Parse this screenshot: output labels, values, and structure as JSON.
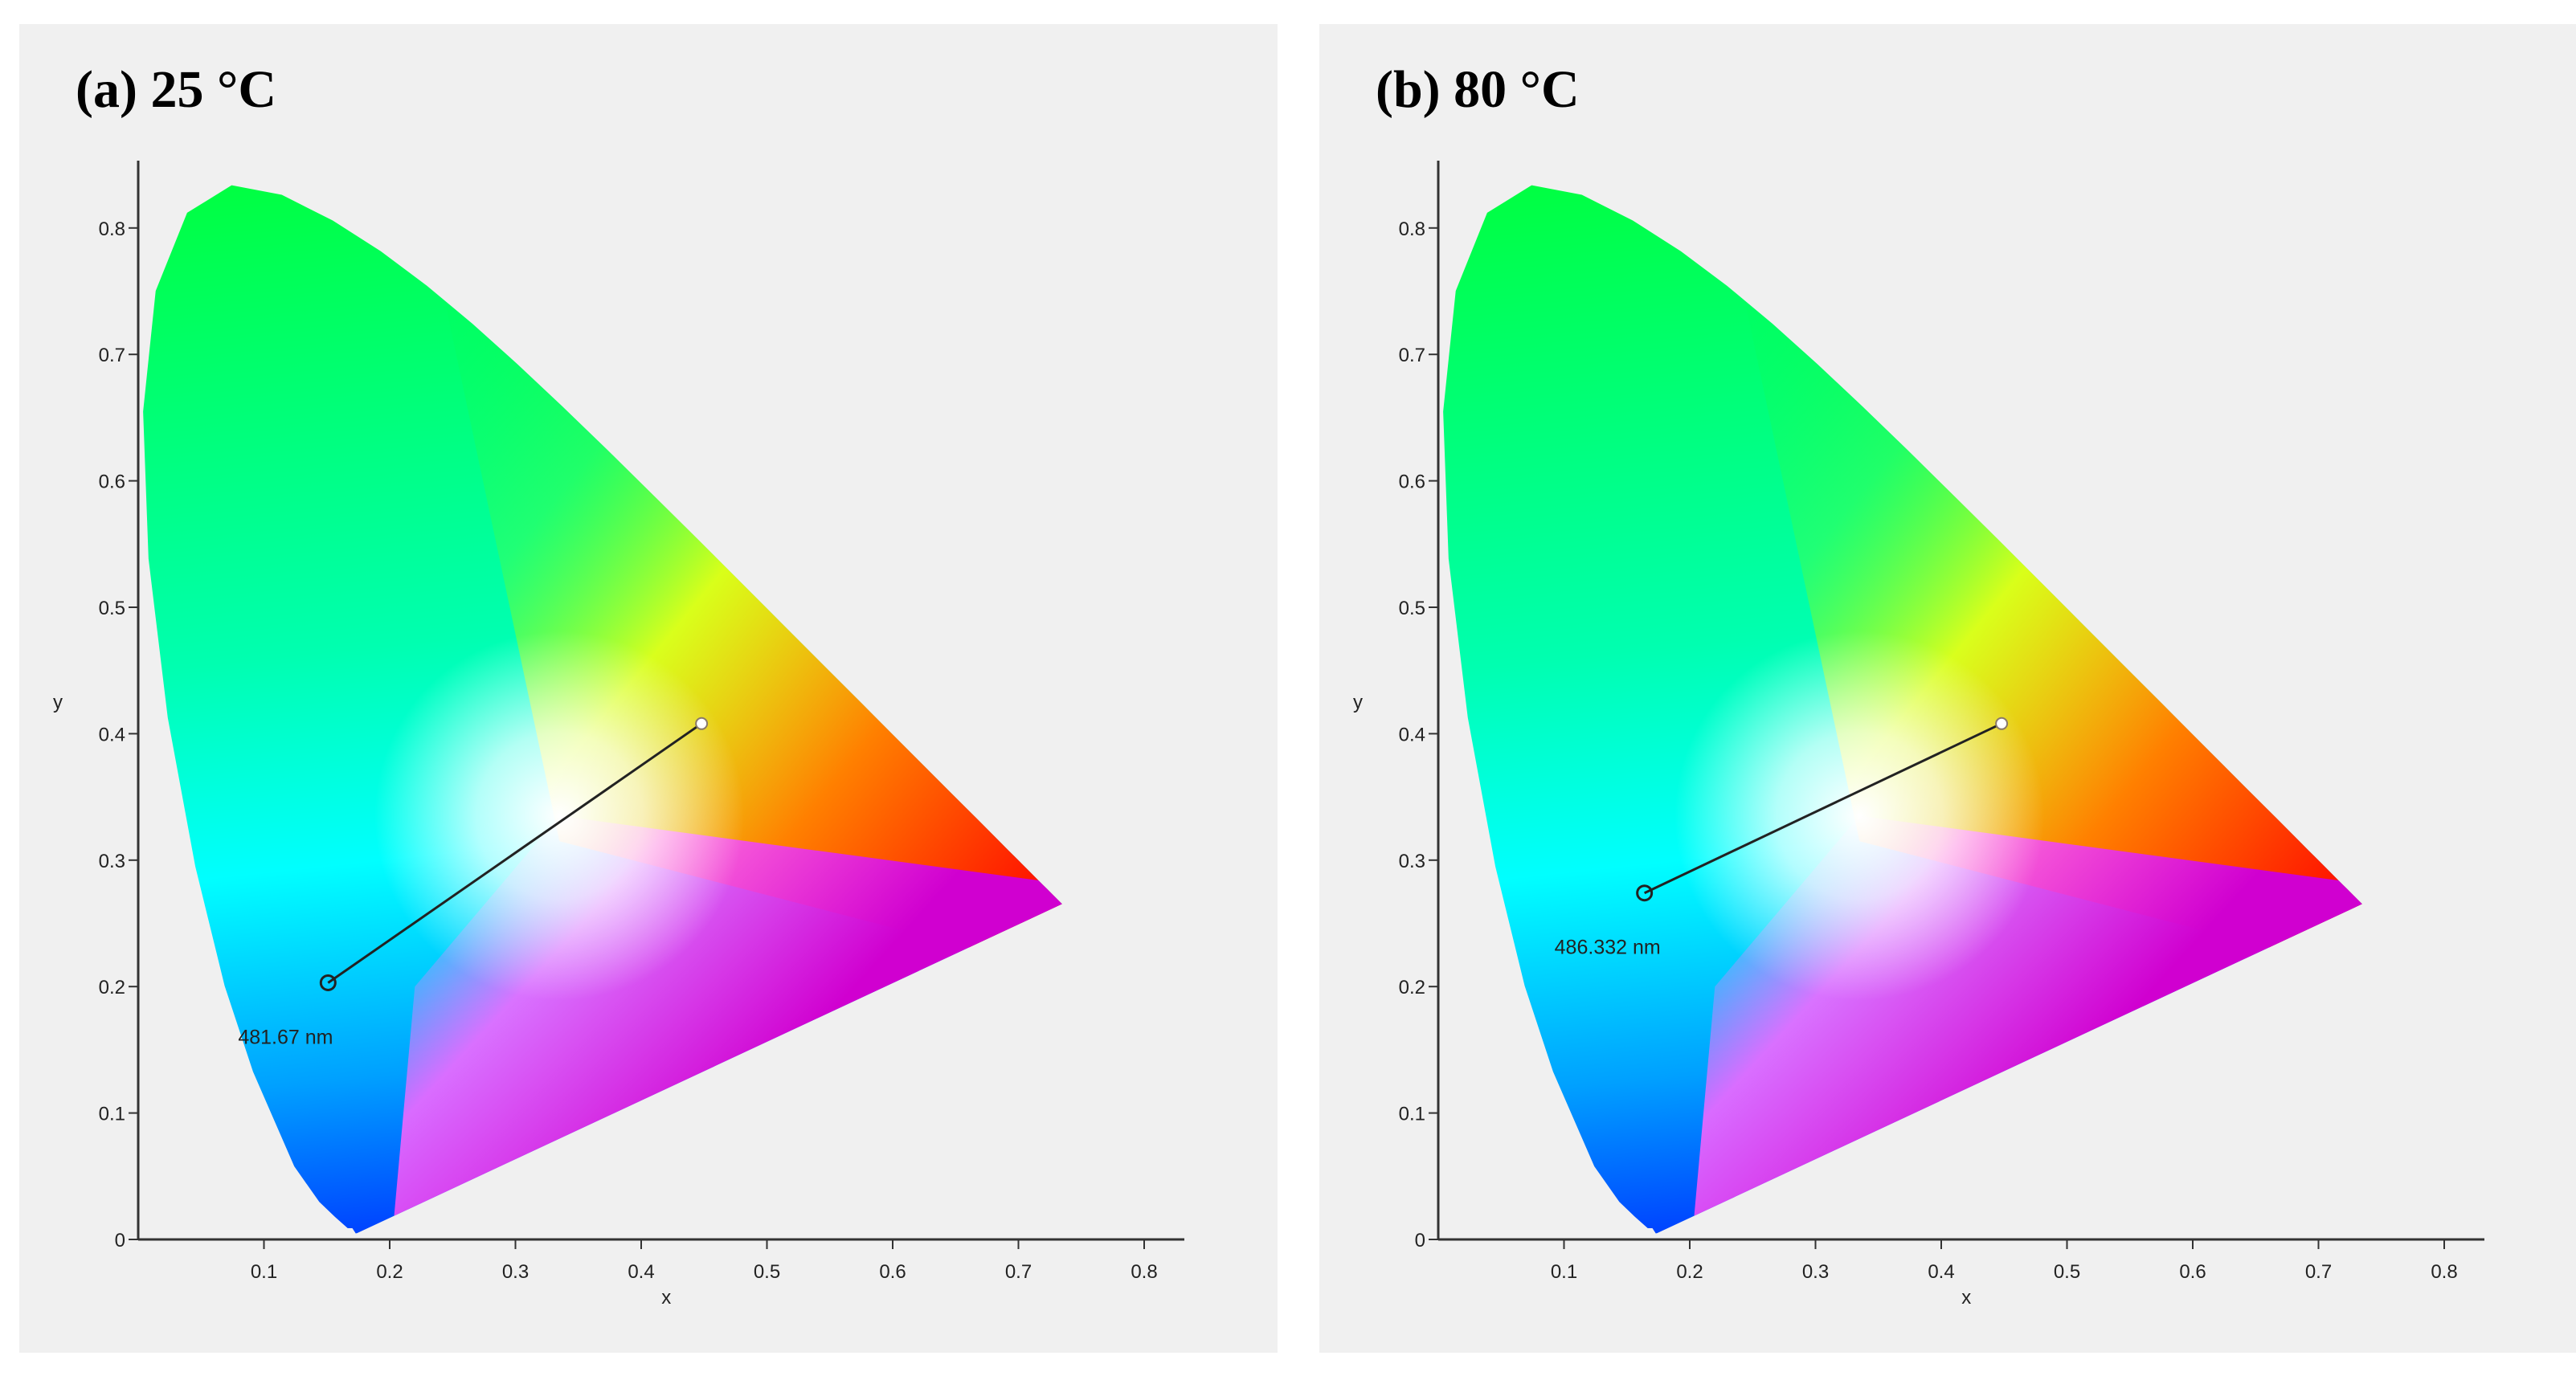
{
  "chart_data": [
    {
      "type": "scatter",
      "title": "(a) 25 °C",
      "xlabel": "x",
      "ylabel": "y",
      "xlim": [
        0,
        0.84
      ],
      "ylim": [
        0,
        0.84
      ],
      "x_ticks": [
        "0.1",
        "0.2",
        "0.3",
        "0.4",
        "0.5",
        "0.6",
        "0.7",
        "0.8"
      ],
      "y_ticks": [
        "0",
        "0.1",
        "0.2",
        "0.3",
        "0.4",
        "0.5",
        "0.6",
        "0.7",
        "0.8"
      ],
      "grid": false,
      "background": "CIE 1931 chromaticity gamut",
      "white_point": {
        "x": 0.448,
        "y": 0.408
      },
      "point": {
        "x": 0.151,
        "y": 0.203
      },
      "dominant_wavelength_label": "481.67 nm"
    },
    {
      "type": "scatter",
      "title": "(b) 80 °C",
      "xlabel": "x",
      "ylabel": "y",
      "xlim": [
        0,
        0.84
      ],
      "ylim": [
        0,
        0.84
      ],
      "x_ticks": [
        "0.1",
        "0.2",
        "0.3",
        "0.4",
        "0.5",
        "0.6",
        "0.7",
        "0.8"
      ],
      "y_ticks": [
        "0",
        "0.1",
        "0.2",
        "0.3",
        "0.4",
        "0.5",
        "0.6",
        "0.7",
        "0.8"
      ],
      "grid": false,
      "background": "CIE 1931 chromaticity gamut",
      "white_point": {
        "x": 0.448,
        "y": 0.408
      },
      "point": {
        "x": 0.164,
        "y": 0.274
      },
      "dominant_wavelength_label": "486.332 nm"
    }
  ],
  "colors": {
    "panel_background": "#f0f0f0",
    "axis": "#333333",
    "line": "#222222",
    "red_primary": "#ff0000",
    "green_primary": "#00ff00",
    "blue_primary": "#0000ff"
  }
}
